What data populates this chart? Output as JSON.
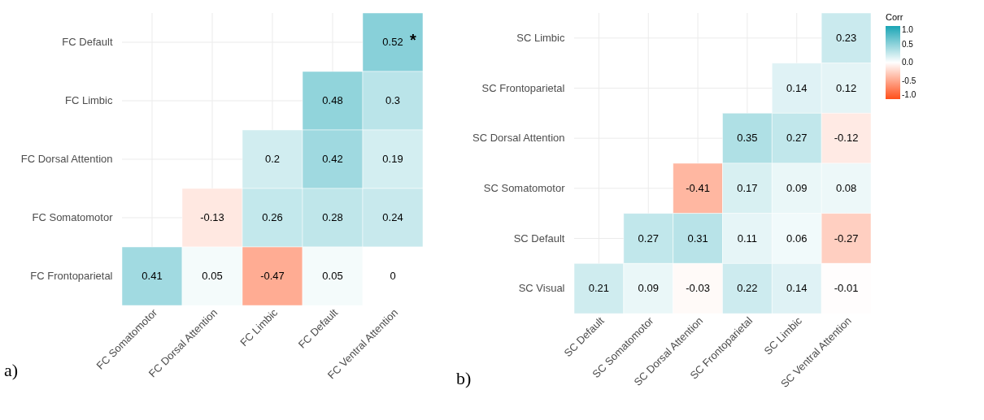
{
  "chart_data": [
    {
      "type": "heatmap",
      "categories": [
        "FC Somatomotor",
        "FC Dorsal Attention",
        "FC Limbic",
        "FC Default",
        "FC Ventral Attention"
      ],
      "y_categories": [
        "FC Default",
        "FC Limbic",
        "FC Dorsal Attention",
        "FC Somatomotor",
        "FC Frontoparietal"
      ],
      "cells": [
        [
          null,
          null,
          null,
          null,
          0.52
        ],
        [
          null,
          null,
          null,
          0.48,
          0.3
        ],
        [
          null,
          null,
          0.2,
          0.42,
          0.19
        ],
        [
          null,
          -0.13,
          0.26,
          0.28,
          0.24
        ],
        [
          0.41,
          0.05,
          -0.47,
          0.05,
          0
        ]
      ],
      "data_labels": true,
      "grid": true,
      "annotations": [
        "a)",
        "*"
      ]
    },
    {
      "type": "heatmap",
      "categories": [
        "SC Default",
        "SC Somatomotor",
        "SC Dorsal Attention",
        "SC Frontoparietal",
        "SC Limbic",
        "SC Ventral Attention"
      ],
      "y_categories": [
        "SC Limbic",
        "SC Frontoparietal",
        "SC Dorsal Attention",
        "SC Somatomotor",
        "SC Default",
        "SC Visual"
      ],
      "cells": [
        [
          null,
          null,
          null,
          null,
          null,
          0.23
        ],
        [
          null,
          null,
          null,
          null,
          0.14,
          0.12
        ],
        [
          null,
          null,
          null,
          0.35,
          0.27,
          -0.12
        ],
        [
          null,
          null,
          -0.41,
          0.17,
          0.09,
          0.08
        ],
        [
          null,
          0.27,
          0.31,
          0.11,
          0.06,
          -0.27
        ],
        [
          0.21,
          0.09,
          -0.03,
          0.22,
          0.14,
          -0.01
        ]
      ],
      "data_labels": true,
      "grid": true,
      "clabel": "Corr",
      "clim": [
        -1,
        1
      ],
      "cticks": [
        {
          "value": 1,
          "label": "1.0"
        },
        {
          "value": 0.5,
          "label": "0.5"
        },
        {
          "value": 0,
          "label": "0.0"
        },
        {
          "value": -0.5,
          "label": "-0.5"
        },
        {
          "value": -1,
          "label": "-1.0"
        }
      ],
      "annotations": [
        "b)"
      ]
    }
  ]
}
